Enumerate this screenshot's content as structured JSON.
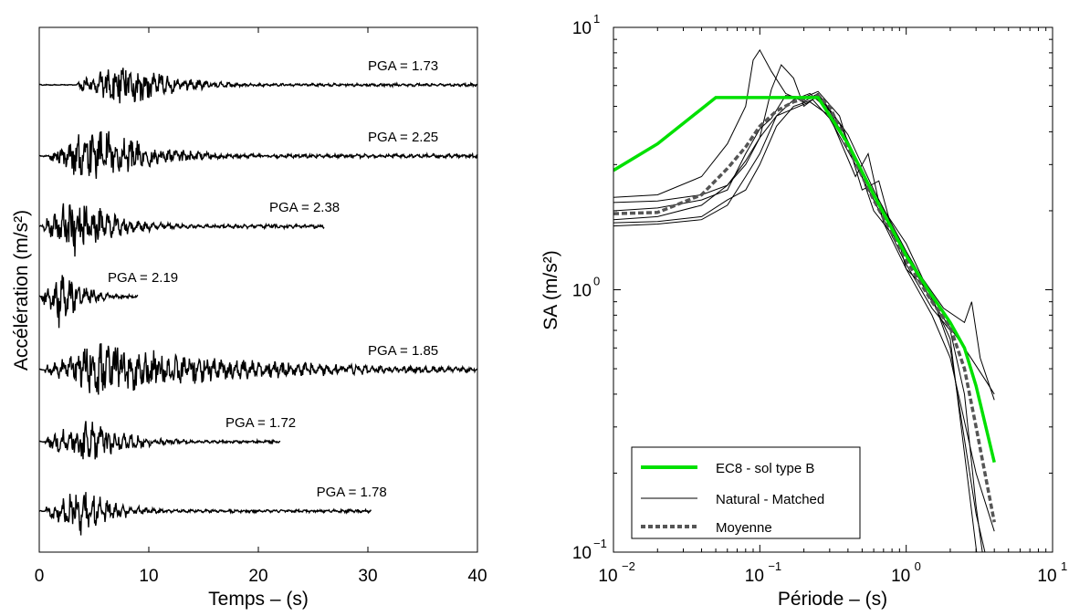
{
  "chart_data": [
    {
      "type": "line",
      "xlabel": "Temps – (s)",
      "ylabel": "Accélération (m/s²)",
      "xlim": [
        0,
        40
      ],
      "xticks": [
        "0",
        "10",
        "20",
        "30",
        "40"
      ],
      "grid": false,
      "series": [
        {
          "pga_label": "PGA = 1.73",
          "pga": 1.73,
          "duration": 40,
          "onset": 3.5,
          "peak_time": 8.0,
          "decay": 4.0,
          "amp_env": 1.73
        },
        {
          "pga_label": "PGA = 2.25",
          "pga": 2.25,
          "duration": 40,
          "onset": 1.0,
          "peak_time": 5.5,
          "decay": 4.5,
          "amp_env": 2.25
        },
        {
          "pga_label": "PGA = 2.38",
          "pga": 2.38,
          "duration": 26,
          "onset": 0.3,
          "peak_time": 3.2,
          "decay": 3.5,
          "amp_env": 2.38
        },
        {
          "pga_label": "PGA = 2.19",
          "pga": 2.19,
          "duration": 9,
          "onset": 0.2,
          "peak_time": 1.8,
          "decay": 2.0,
          "amp_env": 2.19
        },
        {
          "pga_label": "PGA = 1.85",
          "pga": 1.85,
          "duration": 40,
          "onset": 0.5,
          "peak_time": 5.5,
          "decay": 14.0,
          "amp_env": 1.85
        },
        {
          "pga_label": "PGA = 1.72",
          "pga": 1.72,
          "duration": 22,
          "onset": 0.5,
          "peak_time": 4.5,
          "decay": 3.5,
          "amp_env": 1.72
        },
        {
          "pga_label": "PGA = 1.78",
          "pga": 1.78,
          "duration": 30.3,
          "onset": 0.5,
          "peak_time": 4.0,
          "decay": 3.0,
          "amp_env": 1.78
        }
      ]
    },
    {
      "type": "line",
      "xlabel": "Période – (s)",
      "ylabel": "SA (m/s²)",
      "xscale": "log",
      "yscale": "log",
      "xlim": [
        0.01,
        10
      ],
      "ylim": [
        0.1,
        10
      ],
      "xticks": [
        {
          "base": "10",
          "exp": "−2"
        },
        {
          "base": "10",
          "exp": "−1"
        },
        {
          "base": "10",
          "exp": "0"
        },
        {
          "base": "10",
          "exp": "1"
        }
      ],
      "yticks": [
        {
          "base": "10",
          "exp": "−1"
        },
        {
          "base": "10",
          "exp": "0"
        },
        {
          "base": "10",
          "exp": "1"
        }
      ],
      "legend_position": "bottom-left",
      "legend": [
        {
          "label": "EC8 - sol type B",
          "color": "#00e000",
          "style": "solid-thick"
        },
        {
          "label": "Natural - Matched",
          "color": "#000000",
          "style": "solid-thin"
        },
        {
          "label": "Moyenne",
          "color": "#555555",
          "style": "dashed-thick"
        }
      ],
      "series": [
        {
          "name": "EC8 - sol type B",
          "color": "#00e000",
          "points": [
            [
              0.01,
              2.85
            ],
            [
              0.02,
              3.6
            ],
            [
              0.05,
              5.4
            ],
            [
              0.25,
              5.4
            ],
            [
              0.4,
              3.6
            ],
            [
              0.6,
              2.3
            ],
            [
              1.0,
              1.35
            ],
            [
              1.5,
              0.95
            ],
            [
              2.0,
              0.75
            ],
            [
              2.5,
              0.6
            ],
            [
              3.0,
              0.43
            ],
            [
              4.0,
              0.22
            ]
          ]
        },
        {
          "name": "Moyenne",
          "color": "#555555",
          "points": [
            [
              0.01,
              1.95
            ],
            [
              0.02,
              1.97
            ],
            [
              0.04,
              2.3
            ],
            [
              0.06,
              2.9
            ],
            [
              0.08,
              3.5
            ],
            [
              0.1,
              4.2
            ],
            [
              0.13,
              4.8
            ],
            [
              0.17,
              5.2
            ],
            [
              0.25,
              5.5
            ],
            [
              0.3,
              5.0
            ],
            [
              0.4,
              3.5
            ],
            [
              0.6,
              2.2
            ],
            [
              1.0,
              1.3
            ],
            [
              1.5,
              0.9
            ],
            [
              2.0,
              0.72
            ],
            [
              2.5,
              0.5
            ],
            [
              3.0,
              0.3
            ],
            [
              4.0,
              0.13
            ]
          ]
        },
        {
          "name": "",
          "color": "#000000",
          "points": [
            [
              0.01,
              2.25
            ],
            [
              0.02,
              2.3
            ],
            [
              0.04,
              2.7
            ],
            [
              0.06,
              3.6
            ],
            [
              0.08,
              5.0
            ],
            [
              0.09,
              7.5
            ],
            [
              0.1,
              8.2
            ],
            [
              0.12,
              6.8
            ],
            [
              0.15,
              5.6
            ],
            [
              0.2,
              5.2
            ],
            [
              0.25,
              5.6
            ],
            [
              0.4,
              3.9
            ],
            [
              0.6,
              2.4
            ],
            [
              1.0,
              1.4
            ],
            [
              1.5,
              0.95
            ],
            [
              2.0,
              0.6
            ],
            [
              3.0,
              0.14
            ],
            [
              4.0,
              0.07
            ]
          ]
        },
        {
          "name": "",
          "color": "#000000",
          "points": [
            [
              0.01,
              2.15
            ],
            [
              0.02,
              2.18
            ],
            [
              0.04,
              2.3
            ],
            [
              0.06,
              2.5
            ],
            [
              0.08,
              3.0
            ],
            [
              0.1,
              3.8
            ],
            [
              0.12,
              5.8
            ],
            [
              0.14,
              7.2
            ],
            [
              0.17,
              6.4
            ],
            [
              0.2,
              5.0
            ],
            [
              0.25,
              5.5
            ],
            [
              0.35,
              4.3
            ],
            [
              0.6,
              2.3
            ],
            [
              1.0,
              1.5
            ],
            [
              1.3,
              1.1
            ],
            [
              1.8,
              0.85
            ],
            [
              2.5,
              0.75
            ],
            [
              2.8,
              0.9
            ],
            [
              3.2,
              0.55
            ],
            [
              4.0,
              0.38
            ]
          ]
        },
        {
          "name": "",
          "color": "#000000",
          "points": [
            [
              0.01,
              1.75
            ],
            [
              0.02,
              1.78
            ],
            [
              0.04,
              1.85
            ],
            [
              0.06,
              2.1
            ],
            [
              0.08,
              2.7
            ],
            [
              0.1,
              3.3
            ],
            [
              0.13,
              4.6
            ],
            [
              0.17,
              5.3
            ],
            [
              0.22,
              5.6
            ],
            [
              0.3,
              4.8
            ],
            [
              0.45,
              3.2
            ],
            [
              0.6,
              2.0
            ],
            [
              0.9,
              1.5
            ],
            [
              1.0,
              1.2
            ],
            [
              1.4,
              1.0
            ],
            [
              2.0,
              0.65
            ],
            [
              2.6,
              0.2
            ],
            [
              3.1,
              0.09
            ]
          ]
        },
        {
          "name": "",
          "color": "#000000",
          "points": [
            [
              0.01,
              2.0
            ],
            [
              0.02,
              2.05
            ],
            [
              0.04,
              2.2
            ],
            [
              0.06,
              2.4
            ],
            [
              0.08,
              3.3
            ],
            [
              0.1,
              4.1
            ],
            [
              0.12,
              4.5
            ],
            [
              0.15,
              5.5
            ],
            [
              0.2,
              5.4
            ],
            [
              0.25,
              5.7
            ],
            [
              0.35,
              4.6
            ],
            [
              0.5,
              2.4
            ],
            [
              0.65,
              2.6
            ],
            [
              0.8,
              1.7
            ],
            [
              1.0,
              1.35
            ],
            [
              1.5,
              0.9
            ],
            [
              2.5,
              0.6
            ],
            [
              3.5,
              0.45
            ],
            [
              4.0,
              0.4
            ]
          ]
        },
        {
          "name": "",
          "color": "#000000",
          "points": [
            [
              0.01,
              1.85
            ],
            [
              0.02,
              1.9
            ],
            [
              0.04,
              2.1
            ],
            [
              0.06,
              2.5
            ],
            [
              0.08,
              3.1
            ],
            [
              0.1,
              3.8
            ],
            [
              0.13,
              4.6
            ],
            [
              0.17,
              4.9
            ],
            [
              0.22,
              5.2
            ],
            [
              0.3,
              4.6
            ],
            [
              0.45,
              2.7
            ],
            [
              0.55,
              3.3
            ],
            [
              0.7,
              1.8
            ],
            [
              1.0,
              1.2
            ],
            [
              1.5,
              0.8
            ],
            [
              2.0,
              0.55
            ],
            [
              3.0,
              0.2
            ],
            [
              4.0,
              0.12
            ]
          ]
        },
        {
          "name": "",
          "color": "#000000",
          "points": [
            [
              0.01,
              1.8
            ],
            [
              0.02,
              1.82
            ],
            [
              0.04,
              1.9
            ],
            [
              0.06,
              2.2
            ],
            [
              0.08,
              2.4
            ],
            [
              0.1,
              3.0
            ],
            [
              0.13,
              4.2
            ],
            [
              0.17,
              5.0
            ],
            [
              0.23,
              5.3
            ],
            [
              0.3,
              4.5
            ],
            [
              0.45,
              3.0
            ],
            [
              0.6,
              2.2
            ],
            [
              1.0,
              1.25
            ],
            [
              1.5,
              0.85
            ],
            [
              2.0,
              0.7
            ],
            [
              2.5,
              0.4
            ],
            [
              3.0,
              0.15
            ],
            [
              3.5,
              0.08
            ]
          ]
        },
        {
          "name": "",
          "color": "#000000",
          "points": [
            [
              0.01,
              2.05
            ],
            [
              0.02,
              2.1
            ],
            [
              0.04,
              2.3
            ],
            [
              0.06,
              2.6
            ],
            [
              0.08,
              3.2
            ],
            [
              0.1,
              4.0
            ],
            [
              0.12,
              5.0
            ],
            [
              0.16,
              5.4
            ],
            [
              0.2,
              5.1
            ],
            [
              0.25,
              5.5
            ],
            [
              0.35,
              3.7
            ],
            [
              0.5,
              2.6
            ],
            [
              0.8,
              1.8
            ],
            [
              1.0,
              1.5
            ],
            [
              1.5,
              1.0
            ],
            [
              2.0,
              0.7
            ],
            [
              3.0,
              0.5
            ],
            [
              4.0,
              0.42
            ]
          ]
        }
      ]
    }
  ]
}
